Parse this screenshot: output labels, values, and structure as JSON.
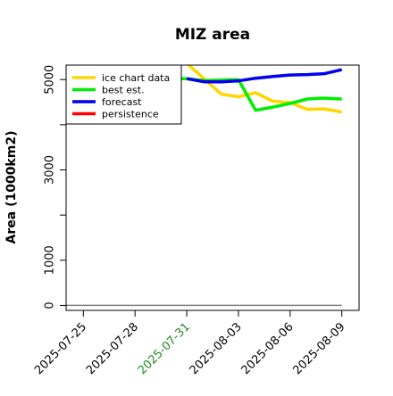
{
  "chart_data": {
    "type": "line",
    "title": "MIZ area",
    "xlabel": "",
    "ylabel": "Area (1000km2)",
    "x_ticks": [
      "2025-07-25",
      "2025-07-28",
      "2025-07-31",
      "2025-08-03",
      "2025-08-06",
      "2025-08-09"
    ],
    "highlighted_tick": "2025-07-31",
    "highlight_color": "#228B22",
    "y_ticks": [
      0,
      1000,
      3000,
      5000
    ],
    "y_minor_ticks": [
      2000,
      4000
    ],
    "xlim": [
      "2025-07-24",
      "2025-08-10"
    ],
    "ylim": [
      -110,
      5320
    ],
    "grid": false,
    "legend_position": "top-left",
    "series": [
      {
        "name": "ice chart data",
        "color": "#FFD700",
        "x": [
          "2025-07-31",
          "2025-08-01",
          "2025-08-02",
          "2025-08-03",
          "2025-08-04",
          "2025-08-05",
          "2025-08-06",
          "2025-08-07",
          "2025-08-08",
          "2025-08-09"
        ],
        "y": [
          5360,
          5020,
          4680,
          4620,
          4710,
          4520,
          4490,
          4340,
          4350,
          4280
        ]
      },
      {
        "name": "best est.",
        "color": "#00EE00",
        "x": [
          "2025-07-30",
          "2025-07-31",
          "2025-08-01",
          "2025-08-02",
          "2025-08-03",
          "2025-08-04",
          "2025-08-05",
          "2025-08-06",
          "2025-08-07",
          "2025-08-08",
          "2025-08-09"
        ],
        "y": [
          5020,
          5020,
          4980,
          4990,
          5000,
          4320,
          4390,
          4470,
          4570,
          4590,
          4570
        ]
      },
      {
        "name": "forecast",
        "color": "#0000EE",
        "x": [
          "2025-07-31",
          "2025-08-01",
          "2025-08-02",
          "2025-08-03",
          "2025-08-04",
          "2025-08-05",
          "2025-08-06",
          "2025-08-07",
          "2025-08-08",
          "2025-08-09"
        ],
        "y": [
          5020,
          4950,
          4950,
          4970,
          5030,
          5070,
          5100,
          5110,
          5130,
          5220
        ]
      },
      {
        "name": "persistence",
        "color": "#FF0000",
        "x": [],
        "y": []
      }
    ],
    "reference_line": {
      "color": "#808080",
      "x": [
        "2025-07-24",
        "2025-08-09"
      ],
      "y": [
        0,
        0
      ]
    }
  }
}
